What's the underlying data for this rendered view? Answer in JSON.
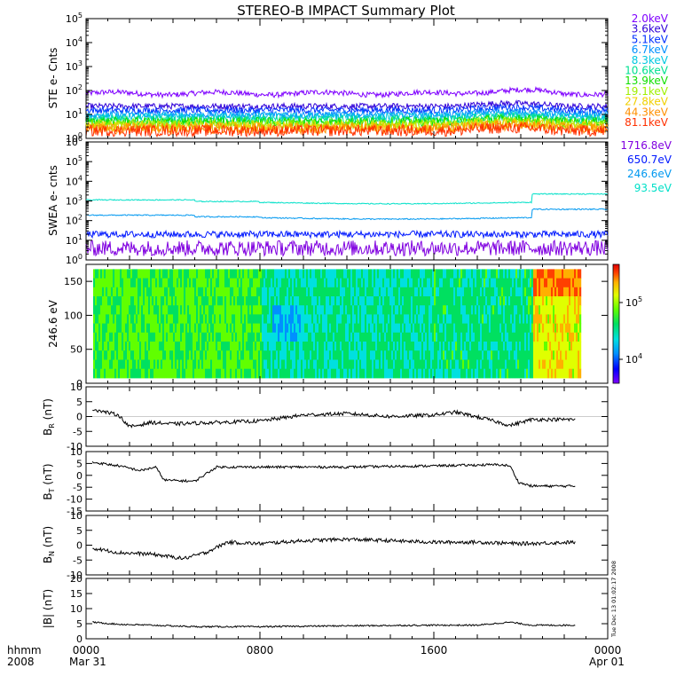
{
  "title": "STEREO-B IMPACT Summary Plot",
  "time_axis": {
    "row1_labels": [
      "hhmm",
      "0000",
      "0800",
      "1600",
      "0000"
    ],
    "row2_labels": [
      "2008",
      "Mar 31",
      "Apr 01"
    ]
  },
  "side_stamp": "Tue Dec 13 01:02:17 2008",
  "colorbar": {
    "tick_labels": [
      "10^5",
      "10^4"
    ],
    "colors": [
      "#7f00ff",
      "#0000ff",
      "#0090ff",
      "#00e0e0",
      "#00e060",
      "#60ff00",
      "#e0ff00",
      "#ffb000",
      "#ff4000",
      "#e00000"
    ]
  },
  "chart_data": [
    {
      "type": "line",
      "ylabel": "STE e- Cnts",
      "yscale": "log",
      "ylim": [
        1,
        100000
      ],
      "ytick_labels": [
        "10^0",
        "10^1",
        "10^2",
        "10^3",
        "10^4",
        "10^5"
      ],
      "xlim": [
        0,
        24
      ],
      "x_unit": "hours since 0000 Mar 31 2008",
      "series": [
        {
          "name": "2.0keV",
          "color": "#7f00ff",
          "level": 75
        },
        {
          "name": "3.6keV",
          "color": "#3000d8",
          "level": 22
        },
        {
          "name": "5.1keV",
          "color": "#0030ff",
          "level": 15
        },
        {
          "name": "6.7keV",
          "color": "#0090ff",
          "level": 10
        },
        {
          "name": "8.3keV",
          "color": "#00c8e0",
          "level": 8
        },
        {
          "name": "10.6keV",
          "color": "#00e090",
          "level": 6
        },
        {
          "name": "13.9keV",
          "color": "#10e000",
          "level": 5
        },
        {
          "name": "19.1keV",
          "color": "#a0f000",
          "level": 4
        },
        {
          "name": "27.8keV",
          "color": "#f0d000",
          "level": 3.2
        },
        {
          "name": "44.3keV",
          "color": "#ff9000",
          "level": 2.6
        },
        {
          "name": "81.1keV",
          "color": "#ff3000",
          "level": 2.1
        }
      ]
    },
    {
      "type": "line",
      "ylabel": "SWEA e- cnts",
      "yscale": "log",
      "ylim": [
        1,
        1000000
      ],
      "ytick_labels": [
        "10^0",
        "10^1",
        "10^2",
        "10^3",
        "10^4",
        "10^5",
        "10^6"
      ],
      "xlim": [
        0,
        24
      ],
      "series": [
        {
          "name": "1716.8eV",
          "color": "#8000e0",
          "level": 4
        },
        {
          "name": "650.7eV",
          "color": "#0018ff",
          "level": 20
        },
        {
          "name": "246.6eV",
          "color": "#0098f0",
          "level": 150
        },
        {
          "name": "93.5eV",
          "color": "#00e0c8",
          "level": 900
        }
      ]
    },
    {
      "type": "heatmap",
      "ylabel": "246.6 eV",
      "ylim": [
        0,
        175
      ],
      "ytick_labels": [
        "0",
        "50",
        "100",
        "150"
      ],
      "xlim": [
        0,
        24
      ]
    },
    {
      "type": "line",
      "ylabel": "B_R (nT)",
      "ylim": [
        -10,
        10
      ],
      "ytick_labels": [
        "10",
        "5",
        "0",
        "-5",
        "-10"
      ],
      "xlim": [
        0,
        24
      ],
      "x": [
        0.3,
        1.5,
        2.0,
        3.0,
        4.0,
        6.0,
        8.0,
        10.0,
        12.0,
        14.0,
        16.0,
        17.0,
        18.5,
        19.5,
        20.5,
        22.5
      ],
      "y": [
        2.5,
        0.5,
        -3.5,
        -2.0,
        -2.5,
        -2.0,
        -1.5,
        0.5,
        1.0,
        0.0,
        0.5,
        1.5,
        -1.0,
        -3.0,
        -1.0,
        -1.0
      ]
    },
    {
      "type": "line",
      "ylabel": "B_T (nT)",
      "ylim": [
        -15,
        10
      ],
      "ytick_labels": [
        "10",
        "5",
        "0",
        "-5",
        "-10",
        "-15"
      ],
      "xlim": [
        0,
        24
      ],
      "x": [
        0.3,
        1.5,
        2.5,
        3.2,
        3.6,
        5.0,
        6.0,
        8.0,
        12.0,
        16.0,
        19.0,
        19.5,
        19.9,
        20.5,
        22.5
      ],
      "y": [
        5.5,
        4.0,
        2.0,
        3.5,
        -2.0,
        -2.5,
        3.5,
        3.5,
        3.5,
        4.0,
        4.5,
        4.0,
        -3.0,
        -4.5,
        -4.5
      ]
    },
    {
      "type": "line",
      "ylabel": "B_N (nT)",
      "ylim": [
        -10,
        10
      ],
      "ytick_labels": [
        "10",
        "5",
        "0",
        "-5",
        "-10"
      ],
      "xlim": [
        0,
        24
      ],
      "x": [
        0.3,
        1.5,
        3.0,
        4.5,
        5.5,
        6.5,
        8.0,
        10.0,
        12.0,
        14.0,
        16.0,
        18.0,
        20.0,
        22.5
      ],
      "y": [
        -1.0,
        -2.5,
        -3.0,
        -4.5,
        -2.5,
        1.0,
        0.5,
        1.5,
        2.0,
        1.5,
        1.0,
        1.0,
        0.5,
        1.0
      ]
    },
    {
      "type": "line",
      "ylabel": "|B| (nT)",
      "ylim": [
        0,
        20
      ],
      "ytick_labels": [
        "20",
        "15",
        "10",
        "5",
        "0"
      ],
      "xlim": [
        0,
        24
      ],
      "x": [
        0.3,
        1.5,
        3.0,
        5.0,
        8.0,
        12.0,
        16.0,
        18.0,
        19.5,
        20.5,
        22.5
      ],
      "y": [
        5.5,
        4.8,
        4.5,
        4.0,
        4.0,
        4.3,
        4.5,
        4.5,
        5.5,
        4.5,
        4.5
      ]
    }
  ]
}
